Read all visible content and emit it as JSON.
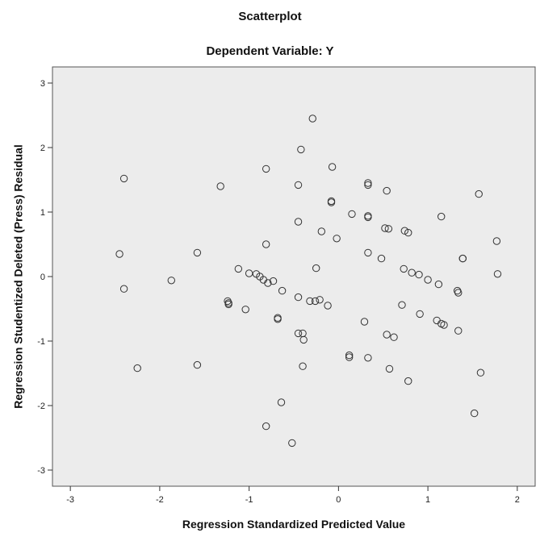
{
  "chart_data": {
    "type": "scatter",
    "title": "Scatterplot",
    "subtitle": "Dependent Variable: Y",
    "xlabel": "Regression Standardized Predicted Value",
    "ylabel": "Regression Studentized Deleted (Press) Residual",
    "xlim": [
      -3.2,
      2.2
    ],
    "ylim": [
      -3.25,
      3.25
    ],
    "xticks": [
      -3,
      -2,
      -1,
      0,
      1,
      2
    ],
    "yticks": [
      -3,
      -2,
      -1,
      0,
      1,
      2,
      3
    ],
    "grid": false,
    "plot_background": "#ececec",
    "marker": "open-circle",
    "marker_color": "#333333",
    "series": [
      {
        "x": [
          -0.29,
          -0.42,
          -2.4,
          -0.81,
          -0.45,
          -0.07,
          -1.32,
          0.33,
          0.33,
          0.54,
          1.57,
          -0.08,
          -0.08,
          0.15,
          1.15,
          -0.45,
          0.33,
          0.33,
          0.52,
          0.56,
          0.74,
          0.78,
          -0.19,
          -0.02,
          1.77,
          -2.45,
          -1.58,
          -0.81,
          0.33,
          0.48,
          1.39,
          1.39,
          -1.12,
          -0.25,
          -1.0,
          -0.92,
          -0.88,
          -0.84,
          -0.79,
          -0.73,
          0.73,
          0.82,
          0.9,
          1.0,
          1.12,
          1.78,
          -2.4,
          -1.87,
          -0.63,
          1.33,
          1.34,
          -0.45,
          -0.32,
          -0.26,
          -0.21,
          -0.12,
          -1.24,
          -1.23,
          -1.23,
          -1.04,
          0.71,
          -0.68,
          -0.68,
          0.91,
          0.29,
          1.1,
          1.15,
          1.18,
          0.54,
          0.62,
          1.34,
          -0.45,
          -0.4,
          -0.39,
          0.12,
          0.12,
          0.33,
          -2.25,
          -1.58,
          -0.4,
          0.57,
          1.59,
          0.78,
          -0.64,
          1.52,
          -0.81,
          -0.52
        ],
        "y": [
          2.45,
          1.97,
          1.52,
          1.67,
          1.42,
          1.7,
          1.4,
          1.45,
          1.42,
          1.33,
          1.28,
          1.17,
          1.15,
          0.97,
          0.93,
          0.85,
          0.94,
          0.92,
          0.75,
          0.74,
          0.71,
          0.68,
          0.7,
          0.59,
          0.55,
          0.35,
          0.37,
          0.5,
          0.37,
          0.28,
          0.28,
          0.28,
          0.12,
          0.13,
          0.05,
          0.04,
          0.0,
          -0.05,
          -0.1,
          -0.07,
          0.12,
          0.06,
          0.03,
          -0.05,
          -0.12,
          0.04,
          -0.19,
          -0.06,
          -0.22,
          -0.22,
          -0.25,
          -0.32,
          -0.38,
          -0.38,
          -0.36,
          -0.45,
          -0.38,
          -0.41,
          -0.43,
          -0.51,
          -0.44,
          -0.66,
          -0.64,
          -0.58,
          -0.7,
          -0.68,
          -0.73,
          -0.75,
          -0.9,
          -0.94,
          -0.84,
          -0.88,
          -0.88,
          -0.98,
          -1.22,
          -1.25,
          -1.26,
          -1.42,
          -1.37,
          -1.39,
          -1.43,
          -1.49,
          -1.62,
          -1.95,
          -2.12,
          -2.32,
          -2.58
        ]
      }
    ]
  }
}
